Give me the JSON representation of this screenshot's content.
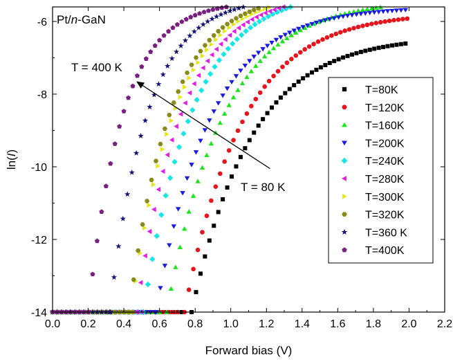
{
  "chart_data": {
    "type": "scatter",
    "title": "",
    "xlabel": "Forward bias (V)",
    "ylabel_prefix": "ln(",
    "ylabel_italic": "I",
    "ylabel_suffix": ")",
    "xlim": [
      0.0,
      2.2
    ],
    "ylim": [
      -14.0,
      -5.6
    ],
    "xticks": [
      0.0,
      0.2,
      0.4,
      0.6,
      0.8,
      1.0,
      1.2,
      1.4,
      1.6,
      1.8,
      2.0,
      2.2
    ],
    "xtick_labels": [
      "0.0",
      "0.2",
      "0.4",
      "0.6",
      "0.8",
      "1.0",
      "1.2",
      "1.4",
      "1.6",
      "1.8",
      "2.0",
      "2.2"
    ],
    "yticks": [
      -14,
      -12,
      -10,
      -8,
      -6
    ],
    "ytick_labels": [
      "-14",
      "-12",
      "-10",
      "-8",
      "-6"
    ],
    "grid": false,
    "legend_position": "right",
    "sample_label_parts": [
      "Pt/",
      "n",
      "-GaN"
    ],
    "annotations": [
      {
        "text": "T = 400 K"
      },
      {
        "text": "T = 80 K"
      }
    ],
    "annotation_arrow": {
      "from": [
        1.22,
        -10.05
      ],
      "to": [
        0.47,
        -7.65
      ]
    },
    "x_step": 0.025,
    "series": [
      {
        "name": "T=80K",
        "color": "#000000",
        "marker": "square",
        "onset_x": 0.78,
        "saturation": -6.4,
        "k": 3.0,
        "floor_start": 0.0,
        "floor_end": 0.74
      },
      {
        "name": "T=120K",
        "color": "#e8141b",
        "marker": "circle",
        "onset_x": 0.74,
        "saturation": -5.75,
        "k": 3.1,
        "floor_start": 0.0,
        "floor_end": 0.72
      },
      {
        "name": "T=160K",
        "color": "#19e619",
        "marker": "triangle-up",
        "onset_x": 0.64,
        "saturation": -5.4,
        "k": 3.1,
        "floor_start": 0.0,
        "floor_end": 0.62
      },
      {
        "name": "T=200K",
        "color": "#1a1ae6",
        "marker": "triangle-down",
        "onset_x": 0.58,
        "saturation": -5.6,
        "k": 3.3,
        "floor_start": 0.0,
        "floor_end": 0.58
      },
      {
        "name": "T=240K",
        "color": "#17e6e6",
        "marker": "diamond",
        "onset_x": 0.51,
        "saturation": -5.15,
        "k": 3.6,
        "floor_start": 0.0,
        "floor_end": 0.52
      },
      {
        "name": "T=280K",
        "color": "#e619e6",
        "marker": "triangle-left",
        "onset_x": 0.47,
        "saturation": -5.25,
        "k": 3.9,
        "floor_start": 0.0,
        "floor_end": 0.5
      },
      {
        "name": "T=300K",
        "color": "#e6e619",
        "marker": "triangle-right",
        "onset_x": 0.44,
        "saturation": -5.25,
        "k": 4.1,
        "floor_start": 0.0,
        "floor_end": 0.46
      },
      {
        "name": "T=320K",
        "color": "#8a8a1a",
        "marker": "hexagon",
        "onset_x": 0.43,
        "saturation": -5.25,
        "k": 4.3,
        "floor_start": 0.0,
        "floor_end": 0.46
      },
      {
        "name": "T=360 K",
        "color": "#14147a",
        "marker": "star",
        "onset_x": 0.32,
        "saturation": -5.35,
        "k": 4.7,
        "floor_start": 0.0,
        "floor_end": 0.34
      },
      {
        "name": "T=400K",
        "color": "#7a1f82",
        "marker": "pentagon",
        "onset_x": 0.2,
        "saturation": -5.45,
        "k": 5.2,
        "floor_start": 0.0,
        "floor_end": 0.22
      }
    ]
  }
}
